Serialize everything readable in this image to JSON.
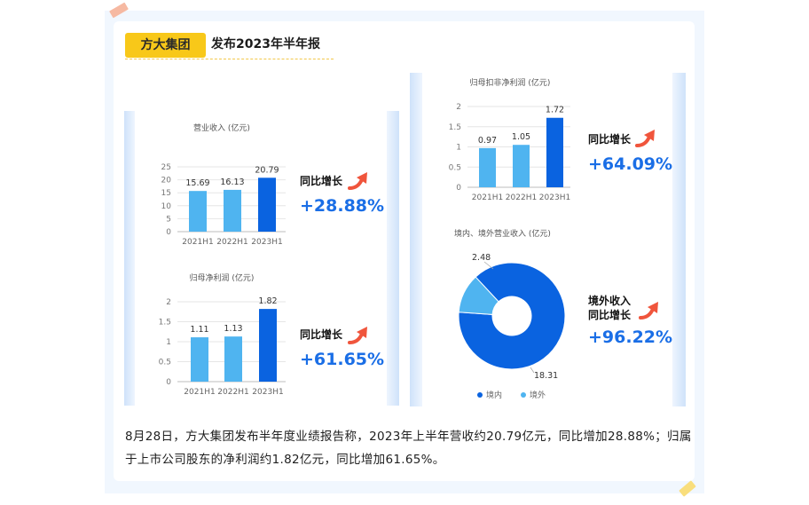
{
  "header": {
    "badge": "方大集团",
    "title": "发布2023年半年报"
  },
  "colors": {
    "bar_light": "#4fb4f0",
    "bar_dark": "#0a63e0",
    "growth_text": "#1a6ee6",
    "arrow": "#f0553c",
    "badge_bg": "#f8c819"
  },
  "growth": {
    "revenue": {
      "label": "同比增长",
      "value": "+28.88%"
    },
    "net_profit": {
      "label": "同比增长",
      "value": "+61.65%"
    },
    "deducted_profit": {
      "label": "同比增长",
      "value": "+64.09%"
    },
    "overseas": {
      "label_line1": "境外收入",
      "label_line2": "同比增长",
      "value": "+96.22%"
    }
  },
  "chart_data": [
    {
      "type": "bar",
      "title": "营业收入 (亿元)",
      "categories": [
        "2021H1",
        "2022H1",
        "2023H1"
      ],
      "values": [
        15.69,
        16.13,
        20.79
      ],
      "value_labels": [
        "15.69",
        "16.13",
        "20.79"
      ],
      "yticks": [
        "0",
        "5",
        "10",
        "15",
        "20",
        "25"
      ],
      "ylim": [
        0,
        25
      ]
    },
    {
      "type": "bar",
      "title": "归母净利润 (亿元)",
      "categories": [
        "2021H1",
        "2022H1",
        "2023H1"
      ],
      "values": [
        1.11,
        1.13,
        1.82
      ],
      "value_labels": [
        "1.11",
        "1.13",
        "1.82"
      ],
      "yticks": [
        "0",
        "0.5",
        "1",
        "1.5",
        "2"
      ],
      "ylim": [
        0,
        2
      ]
    },
    {
      "type": "bar",
      "title": "归母扣非净利润 (亿元)",
      "categories": [
        "2021H1",
        "2022H1",
        "2023H1"
      ],
      "values": [
        0.97,
        1.05,
        1.72
      ],
      "value_labels": [
        "0.97",
        "1.05",
        "1.72"
      ],
      "yticks": [
        "0",
        "0.5",
        "1",
        "1.5",
        "2"
      ],
      "ylim": [
        0,
        2
      ]
    },
    {
      "type": "pie",
      "title": "境内、境外营业收入 (亿元)",
      "labels": [
        "境内",
        "境外"
      ],
      "values": [
        18.31,
        2.48
      ],
      "value_labels": [
        "18.31",
        "2.48"
      ],
      "colors": [
        "#0a63e0",
        "#4fb4f0"
      ],
      "legend": "bottom"
    }
  ],
  "paragraph": "8月28日，方大集团发布半年度业绩报告称，2023年上半年营收约20.79亿元，同比增加28.88%；归属于上市公司股东的净利润约1.82亿元，同比增加61.65%。"
}
